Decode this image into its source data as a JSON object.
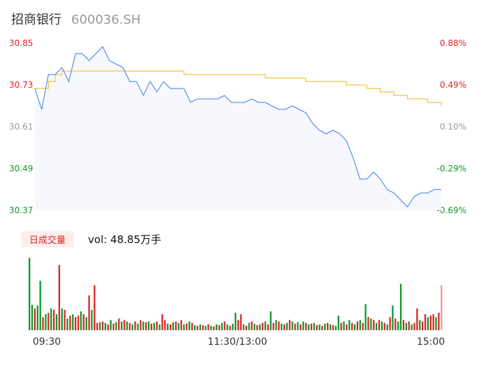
{
  "header": {
    "stock_name": "招商银行",
    "stock_code": "600036.SH"
  },
  "volume_panel": {
    "period_tab": "日成交量",
    "vol_text": "vol: 48.85万手"
  },
  "colors": {
    "price_line": "#3b7ded",
    "avg_line": "#f5c242",
    "up": "#e02424",
    "down": "#0e9a2b",
    "neutral": "#999999",
    "area_fill": "#f6f8fd"
  },
  "chart_data": [
    {
      "type": "line",
      "title": "",
      "x_ticks": [
        "09:30",
        "11:30/13:00",
        "15:00"
      ],
      "y_ticks_left": [
        "30.85",
        "30.73",
        "30.61",
        "30.49",
        "30.37"
      ],
      "y_ticks_right": [
        "0.88%",
        "0.49%",
        "0.10%",
        "-0.29%",
        "-0.69%"
      ],
      "y_tick_colors": [
        "up",
        "up",
        "neutral",
        "down",
        "down"
      ],
      "ylim": [
        30.37,
        30.85
      ],
      "grid": false,
      "series": [
        {
          "key": "price",
          "x": [
            0,
            4,
            8,
            12,
            16,
            20,
            24,
            28,
            32,
            36,
            40,
            44,
            48,
            52,
            56,
            60,
            64,
            68,
            72,
            76,
            80,
            84,
            88,
            92,
            96,
            100,
            104,
            108,
            112,
            116,
            120,
            124,
            128,
            132,
            136,
            140,
            144,
            148,
            152,
            156,
            160,
            164,
            168,
            172,
            176,
            180,
            184,
            188,
            192,
            196,
            200,
            204,
            208,
            212,
            216,
            220,
            224,
            228,
            232,
            236,
            240
          ],
          "values": [
            30.72,
            30.66,
            30.76,
            30.76,
            30.78,
            30.74,
            30.82,
            30.82,
            30.8,
            30.82,
            30.84,
            30.8,
            30.79,
            30.78,
            30.74,
            30.74,
            30.7,
            30.74,
            30.71,
            30.74,
            30.72,
            30.72,
            30.72,
            30.68,
            30.69,
            30.69,
            30.69,
            30.69,
            30.7,
            30.68,
            30.68,
            30.68,
            30.69,
            30.68,
            30.68,
            30.67,
            30.66,
            30.66,
            30.67,
            30.66,
            30.65,
            30.62,
            30.6,
            30.59,
            30.6,
            30.59,
            30.57,
            30.52,
            30.46,
            30.46,
            30.48,
            30.46,
            30.43,
            30.42,
            30.4,
            30.38,
            30.41,
            30.42,
            30.42,
            30.43,
            30.43
          ]
        },
        {
          "key": "avg",
          "x": [
            0,
            4,
            8,
            12,
            16,
            20,
            24,
            28,
            32,
            36,
            40,
            44,
            48,
            52,
            56,
            60,
            64,
            68,
            72,
            76,
            80,
            84,
            88,
            92,
            96,
            100,
            104,
            108,
            112,
            116,
            120,
            124,
            128,
            132,
            136,
            140,
            144,
            148,
            152,
            156,
            160,
            164,
            168,
            172,
            176,
            180,
            184,
            188,
            192,
            196,
            200,
            204,
            208,
            212,
            216,
            220,
            224,
            228,
            232,
            236,
            240
          ],
          "values": [
            30.72,
            30.72,
            30.74,
            30.76,
            30.77,
            30.77,
            30.77,
            30.77,
            30.77,
            30.77,
            30.77,
            30.77,
            30.77,
            30.77,
            30.77,
            30.77,
            30.77,
            30.77,
            30.77,
            30.77,
            30.77,
            30.77,
            30.76,
            30.76,
            30.76,
            30.76,
            30.76,
            30.76,
            30.76,
            30.76,
            30.76,
            30.76,
            30.76,
            30.76,
            30.75,
            30.75,
            30.75,
            30.75,
            30.75,
            30.75,
            30.74,
            30.74,
            30.74,
            30.74,
            30.74,
            30.74,
            30.73,
            30.73,
            30.73,
            30.72,
            30.72,
            30.71,
            30.71,
            30.7,
            30.7,
            30.69,
            30.69,
            30.69,
            30.68,
            30.68,
            30.67
          ]
        }
      ]
    },
    {
      "type": "bar",
      "title": "",
      "x_ticks": [
        "09:30",
        "11:30/13:00",
        "15:00"
      ],
      "ylim": [
        0,
        100
      ],
      "values": [
        100,
        35,
        30,
        34,
        68,
        18,
        22,
        24,
        30,
        28,
        22,
        90,
        30,
        28,
        16,
        20,
        22,
        18,
        20,
        26,
        22,
        18,
        48,
        28,
        62,
        10,
        11,
        12,
        10,
        8,
        14,
        9,
        11,
        16,
        12,
        14,
        12,
        10,
        8,
        12,
        9,
        14,
        12,
        11,
        12,
        9,
        10,
        12,
        8,
        22,
        14,
        9,
        8,
        11,
        12,
        10,
        14,
        8,
        9,
        12,
        10,
        7,
        6,
        8,
        7,
        6,
        8,
        6,
        5,
        8,
        7,
        10,
        12,
        8,
        6,
        9,
        24,
        14,
        22,
        8,
        6,
        10,
        12,
        9,
        7,
        8,
        10,
        12,
        8,
        26,
        10,
        14,
        12,
        9,
        8,
        10,
        14,
        12,
        9,
        11,
        8,
        12,
        10,
        8,
        9,
        10,
        7,
        8,
        6,
        9,
        10,
        8,
        7,
        6,
        20,
        10,
        12,
        8,
        14,
        10,
        8,
        12,
        14,
        10,
        36,
        18,
        16,
        14,
        10,
        14,
        12,
        10,
        8,
        18,
        34,
        16,
        12,
        64,
        14,
        10,
        12,
        8,
        10,
        30,
        14,
        12,
        22,
        18,
        20,
        22,
        18,
        24,
        62
      ],
      "directions": [
        "down",
        "down",
        "up",
        "down",
        "down",
        "up",
        "down",
        "up",
        "down",
        "up",
        "down",
        "up",
        "down",
        "up",
        "down",
        "up",
        "down",
        "up",
        "up",
        "down",
        "up",
        "down",
        "up",
        "down",
        "up",
        "up",
        "down",
        "up",
        "down",
        "up",
        "down",
        "up",
        "down",
        "up",
        "down",
        "up",
        "down",
        "up",
        "down",
        "up",
        "down",
        "up",
        "down",
        "up",
        "down",
        "up",
        "down",
        "up",
        "down",
        "up",
        "up",
        "down",
        "up",
        "down",
        "up",
        "down",
        "up",
        "down",
        "up",
        "down",
        "up",
        "down",
        "up",
        "down",
        "up",
        "down",
        "up",
        "down",
        "up",
        "down",
        "up",
        "down",
        "up",
        "down",
        "up",
        "down",
        "down",
        "up",
        "up",
        "down",
        "up",
        "down",
        "up",
        "down",
        "up",
        "down",
        "up",
        "down",
        "up",
        "down",
        "up",
        "down",
        "up",
        "down",
        "up",
        "down",
        "up",
        "down",
        "up",
        "down",
        "up",
        "down",
        "up",
        "down",
        "up",
        "down",
        "up",
        "down",
        "up",
        "down",
        "up",
        "down",
        "up",
        "down",
        "down",
        "up",
        "down",
        "up",
        "down",
        "up",
        "down",
        "up",
        "down",
        "up",
        "down",
        "up",
        "down",
        "up",
        "down",
        "up",
        "down",
        "up",
        "down",
        "up",
        "down",
        "up",
        "down",
        "down",
        "up",
        "down",
        "up",
        "down",
        "up",
        "up",
        "down",
        "up",
        "up",
        "down",
        "up",
        "up",
        "down",
        "up",
        "up"
      ]
    }
  ]
}
